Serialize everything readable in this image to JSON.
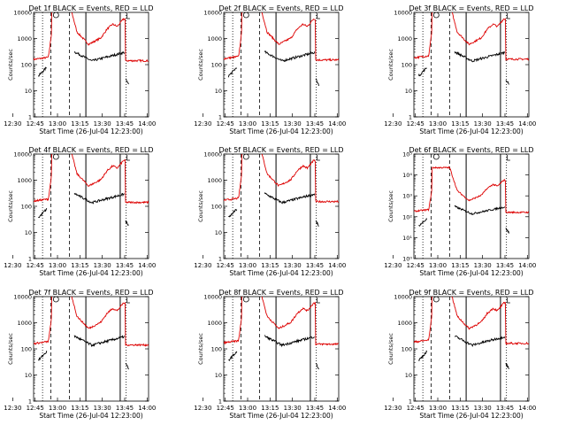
{
  "chart_data": [
    {
      "type": "line",
      "title": "Det 1f BLACK = Events, RED = LLD",
      "xlabel": "Start Time (26-Jul-04 12:23:00)",
      "ylabel": "Counts/sec",
      "y_scale": "log",
      "ylim": [
        1,
        10000
      ],
      "y_tick_labels": [
        "1",
        "10",
        "100",
        "1000",
        "10000"
      ],
      "x_tick_labels": [
        "12:30",
        "12:45",
        "13:00",
        "13:15",
        "13:30",
        "13:45",
        "14:00"
      ],
      "series_colors": {
        "events": "#000000",
        "lld": "#dd0000"
      }
    },
    {
      "type": "line",
      "title": "Det 2f BLACK = Events, RED = LLD",
      "xlabel": "Start Time (26-Jul-04 12:23:00)",
      "ylabel": "Counts/sec",
      "y_scale": "log",
      "ylim": [
        1,
        10000
      ],
      "y_tick_labels": [
        "1",
        "10",
        "100",
        "1000",
        "10000"
      ],
      "x_tick_labels": [
        "12:30",
        "12:45",
        "13:00",
        "13:15",
        "13:30",
        "13:45",
        "14:00"
      ],
      "series_colors": {
        "events": "#000000",
        "lld": "#dd0000"
      }
    },
    {
      "type": "line",
      "title": "Det 3f BLACK = Events, RED = LLD",
      "xlabel": "Start Time (26-Jul-04 12:23:00)",
      "ylabel": "Counts/sec",
      "y_scale": "log",
      "ylim": [
        1,
        10000
      ],
      "y_tick_labels": [
        "1",
        "10",
        "100",
        "1000",
        "10000"
      ],
      "x_tick_labels": [
        "12:30",
        "12:45",
        "13:00",
        "13:15",
        "13:30",
        "13:45",
        "14:00"
      ],
      "series_colors": {
        "events": "#000000",
        "lld": "#dd0000"
      }
    },
    {
      "type": "line",
      "title": "Det 4f BLACK = Events, RED = LLD",
      "xlabel": "Start Time (26-Jul-04 12:23:00)",
      "ylabel": "Counts/sec",
      "y_scale": "log",
      "ylim": [
        1,
        10000
      ],
      "y_tick_labels": [
        "1",
        "10",
        "100",
        "1000",
        "10000"
      ],
      "x_tick_labels": [
        "12:30",
        "12:45",
        "13:00",
        "13:15",
        "13:30",
        "13:45",
        "14:00"
      ],
      "series_colors": {
        "events": "#000000",
        "lld": "#dd0000"
      }
    },
    {
      "type": "line",
      "title": "Det 5f BLACK = Events, RED = LLD",
      "xlabel": "Start Time (26-Jul-04 12:23:00)",
      "ylabel": "Counts/sec",
      "y_scale": "log",
      "ylim": [
        1,
        10000
      ],
      "y_tick_labels": [
        "1",
        "10",
        "100",
        "1000",
        "10000"
      ],
      "x_tick_labels": [
        "12:30",
        "12:45",
        "13:00",
        "13:15",
        "13:30",
        "13:45",
        "14:00"
      ],
      "series_colors": {
        "events": "#000000",
        "lld": "#dd0000"
      }
    },
    {
      "type": "line",
      "title": "Det 6f BLACK = Events, RED = LLD",
      "xlabel": "Start Time (26-Jul-04 12:23:00)",
      "ylabel": "Counts/sec",
      "y_scale": "log",
      "ylim": [
        1,
        100000
      ],
      "y_tick_labels": [
        "10⁰",
        "10¹",
        "10²",
        "10³",
        "10⁴",
        "10⁵"
      ],
      "x_tick_labels": [
        "12:30",
        "12:45",
        "13:00",
        "13:15",
        "13:30",
        "13:45",
        "14:00"
      ],
      "series_colors": {
        "events": "#000000",
        "lld": "#dd0000"
      }
    },
    {
      "type": "line",
      "title": "Det 7f BLACK = Events, RED = LLD",
      "xlabel": "Start Time (26-Jul-04 12:23:00)",
      "ylabel": "Counts/sec",
      "y_scale": "log",
      "ylim": [
        1,
        10000
      ],
      "y_tick_labels": [
        "1",
        "10",
        "100",
        "1000",
        "10000"
      ],
      "x_tick_labels": [
        "12:30",
        "12:45",
        "13:00",
        "13:15",
        "13:30",
        "13:45",
        "14:00"
      ],
      "series_colors": {
        "events": "#000000",
        "lld": "#dd0000"
      }
    },
    {
      "type": "line",
      "title": "Det 8f BLACK = Events, RED = LLD",
      "xlabel": "Start Time (26-Jul-04 12:23:00)",
      "ylabel": "Counts/sec",
      "y_scale": "log",
      "ylim": [
        1,
        10000
      ],
      "y_tick_labels": [
        "1",
        "10",
        "100",
        "1000",
        "10000"
      ],
      "x_tick_labels": [
        "12:30",
        "12:45",
        "13:00",
        "13:15",
        "13:30",
        "13:45",
        "14:00"
      ],
      "series_colors": {
        "events": "#000000",
        "lld": "#dd0000"
      }
    },
    {
      "type": "line",
      "title": "Det 9f BLACK = Events, RED = LLD",
      "xlabel": "Start Time (26-Jul-04 12:23:00)",
      "ylabel": "Counts/sec",
      "y_scale": "log",
      "ylim": [
        1,
        10000
      ],
      "y_tick_labels": [
        "1",
        "10",
        "100",
        "1000",
        "10000"
      ],
      "x_tick_labels": [
        "12:30",
        "12:45",
        "13:00",
        "13:15",
        "13:30",
        "13:45",
        "14:00"
      ],
      "series_colors": {
        "events": "#000000",
        "lld": "#dd0000"
      }
    }
  ]
}
